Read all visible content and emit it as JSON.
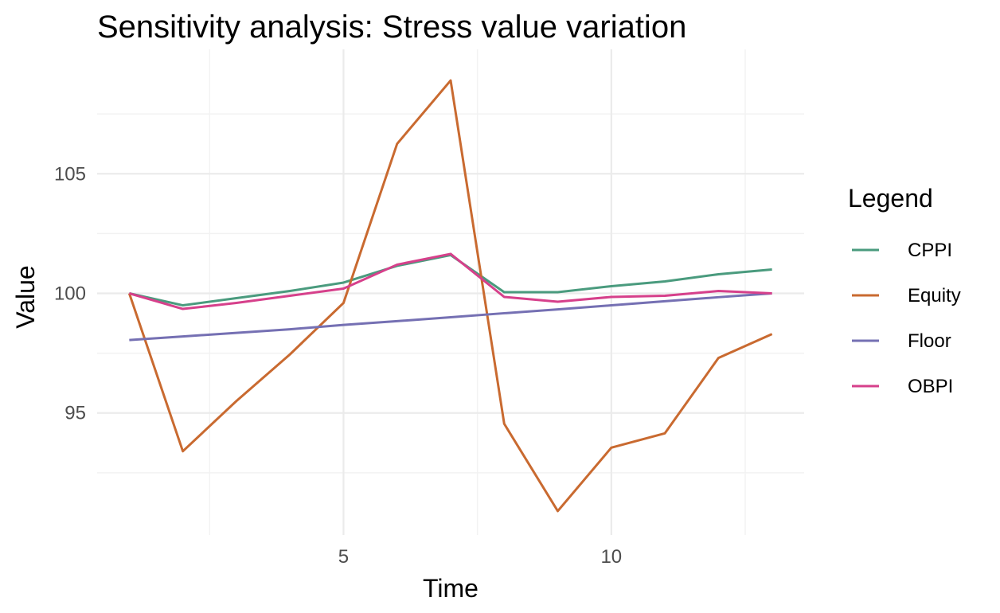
{
  "chart_data": {
    "type": "line",
    "title": "Sensitivity analysis: Stress value variation",
    "xlabel": "Time",
    "ylabel": "Value",
    "x": [
      1,
      2,
      3,
      4,
      5,
      6,
      7,
      8,
      9,
      10,
      11,
      12,
      13
    ],
    "xlim": [
      0.4,
      13.6
    ],
    "ylim": [
      89.9,
      110.2
    ],
    "xticks": [
      5,
      10
    ],
    "yticks": [
      95,
      100,
      105
    ],
    "x_minor_ticks": [
      2.5,
      7.5,
      12.5
    ],
    "y_minor_ticks": [
      92.5,
      97.5,
      102.5,
      107.5
    ],
    "grid": true,
    "legend": {
      "title": "Legend",
      "position": "right"
    },
    "series": [
      {
        "name": "CPPI",
        "color": "#4a9b7e",
        "values": [
          100.0,
          99.5,
          99.8,
          100.1,
          100.45,
          101.15,
          101.6,
          100.05,
          100.05,
          100.3,
          100.5,
          100.8,
          101.0
        ]
      },
      {
        "name": "Equity",
        "color": "#c96a30",
        "values": [
          100.0,
          93.4,
          95.5,
          97.45,
          99.6,
          106.25,
          108.9,
          94.55,
          90.9,
          93.55,
          94.15,
          97.3,
          98.3
        ]
      },
      {
        "name": "Floor",
        "color": "#7570b3",
        "values": [
          98.05,
          98.2,
          98.35,
          98.5,
          98.68,
          98.84,
          99.0,
          99.17,
          99.33,
          99.5,
          99.67,
          99.84,
          100.0
        ]
      },
      {
        "name": "OBPI",
        "color": "#d6408b",
        "values": [
          100.0,
          99.35,
          99.6,
          99.9,
          100.2,
          101.2,
          101.65,
          99.85,
          99.65,
          99.85,
          99.9,
          100.1,
          100.0
        ]
      }
    ]
  }
}
